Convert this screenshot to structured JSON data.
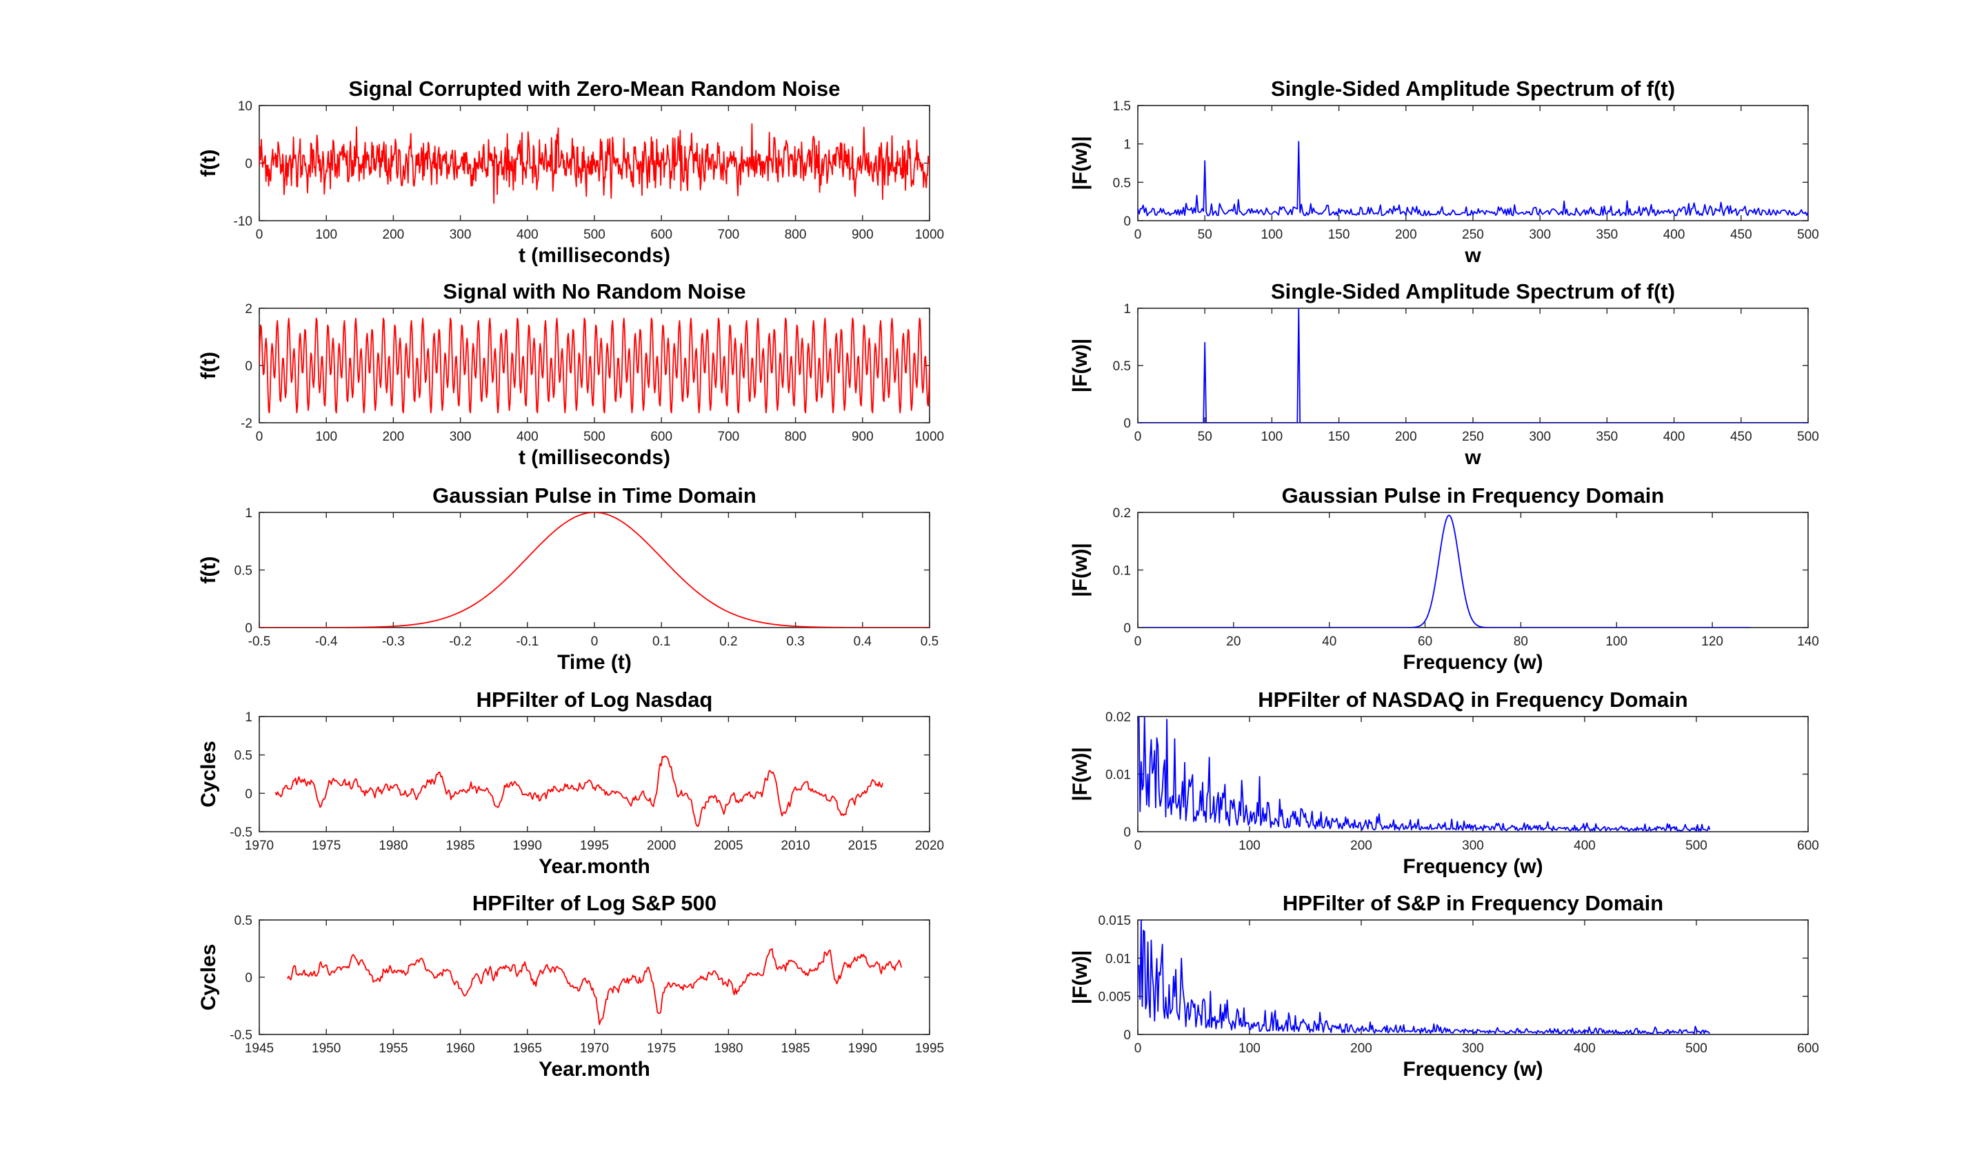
{
  "colors": {
    "red": "#ff0000",
    "blue": "#0000ff",
    "axis": "#262626"
  },
  "chart_data": [
    {
      "id": "noisy-signal",
      "type": "line",
      "title": "Signal Corrupted with Zero-Mean Random Noise",
      "xlabel": "t (milliseconds)",
      "ylabel": "f(t)",
      "xlim": [
        0,
        1000
      ],
      "ylim": [
        -10,
        10
      ],
      "xticks": [
        0,
        100,
        200,
        300,
        400,
        500,
        600,
        700,
        800,
        900,
        1000
      ],
      "yticks": [
        -10,
        0,
        10
      ],
      "series": [
        {
          "color": "red",
          "generator": "noisy_signal",
          "n": 1000
        }
      ]
    },
    {
      "id": "noisy-spectrum",
      "type": "line",
      "title": "Single-Sided Amplitude Spectrum of f(t)",
      "xlabel": "w",
      "ylabel": "|F(w)|",
      "xlim": [
        0,
        500
      ],
      "ylim": [
        0,
        1.5
      ],
      "xticks": [
        0,
        50,
        100,
        150,
        200,
        250,
        300,
        350,
        400,
        450,
        500
      ],
      "yticks": [
        0,
        0.5,
        1,
        1.5
      ],
      "peaks": [
        {
          "x": 50,
          "y": 0.78
        },
        {
          "x": 120,
          "y": 1.03
        }
      ],
      "noise_floor": 0.12,
      "series": [
        {
          "color": "blue",
          "generator": "noisy_spectrum",
          "n": 500
        }
      ]
    },
    {
      "id": "clean-signal",
      "type": "line",
      "title": "Signal with No Random Noise",
      "xlabel": "t (milliseconds)",
      "ylabel": "f(t)",
      "xlim": [
        0,
        1000
      ],
      "ylim": [
        -2,
        2
      ],
      "xticks": [
        0,
        100,
        200,
        300,
        400,
        500,
        600,
        700,
        800,
        900,
        1000
      ],
      "yticks": [
        -2,
        0,
        2
      ],
      "series": [
        {
          "color": "red",
          "generator": "clean_signal",
          "n": 1000
        }
      ]
    },
    {
      "id": "clean-spectrum",
      "type": "line",
      "title": "Single-Sided Amplitude Spectrum of f(t)",
      "xlabel": "w",
      "ylabel": "|F(w)|",
      "xlim": [
        0,
        500
      ],
      "ylim": [
        0,
        1
      ],
      "xticks": [
        0,
        50,
        100,
        150,
        200,
        250,
        300,
        350,
        400,
        450,
        500
      ],
      "yticks": [
        0,
        0.5,
        1
      ],
      "peaks": [
        {
          "x": 50,
          "y": 0.7
        },
        {
          "x": 120,
          "y": 1.0
        }
      ],
      "series": [
        {
          "color": "blue",
          "generator": "clean_spectrum",
          "n": 500
        }
      ]
    },
    {
      "id": "gauss-time",
      "type": "line",
      "title": "Gaussian Pulse in Time Domain",
      "xlabel": "Time (t)",
      "ylabel": "f(t)",
      "xlim": [
        -0.5,
        0.5
      ],
      "ylim": [
        0,
        1
      ],
      "xticks": [
        -0.5,
        -0.4,
        -0.3,
        -0.2,
        -0.1,
        0,
        0.1,
        0.2,
        0.3,
        0.4,
        0.5
      ],
      "yticks": [
        0,
        0.5,
        1
      ],
      "pulse": {
        "center": 0,
        "sigma": 0.1,
        "peak": 1
      },
      "series": [
        {
          "color": "red",
          "generator": "gauss_time",
          "n": 400
        }
      ]
    },
    {
      "id": "gauss-freq",
      "type": "line",
      "title": "Gaussian Pulse in Frequency Domain",
      "xlabel": "Frequency (w)",
      "ylabel": "|F(w)|",
      "xlim": [
        0,
        140
      ],
      "ylim": [
        0,
        0.2
      ],
      "xticks": [
        0,
        20,
        40,
        60,
        80,
        100,
        120,
        140
      ],
      "yticks": [
        0,
        0.1,
        0.2
      ],
      "pulse": {
        "center": 65,
        "sigma": 2.1,
        "peak": 0.195,
        "x_end": 128
      },
      "series": [
        {
          "color": "blue",
          "generator": "gauss_freq",
          "n": 512
        }
      ]
    },
    {
      "id": "nasdaq-cycles",
      "type": "line",
      "title": "HPFilter of Log Nasdaq",
      "xlabel": "Year.month",
      "ylabel": "Cycles",
      "xlim": [
        1970,
        2020
      ],
      "ylim": [
        -0.5,
        1
      ],
      "xticks": [
        1970,
        1975,
        1980,
        1985,
        1990,
        1995,
        2000,
        2005,
        2010,
        2015,
        2020
      ],
      "yticks": [
        -0.5,
        0,
        0.5,
        1
      ],
      "x_range": [
        1971.2,
        2016.5
      ],
      "features": [
        {
          "x": 1974.6,
          "y": -0.37
        },
        {
          "x": 1983.5,
          "y": 0.26
        },
        {
          "x": 1987.8,
          "y": -0.2
        },
        {
          "x": 2000.2,
          "y": 0.52
        },
        {
          "x": 2002.7,
          "y": -0.4
        },
        {
          "x": 2008.2,
          "y": 0.18
        },
        {
          "x": 2009.2,
          "y": -0.42
        }
      ],
      "series": [
        {
          "color": "red",
          "generator": "nasdaq",
          "n": 544
        }
      ]
    },
    {
      "id": "nasdaq-spectrum",
      "type": "line",
      "title": "HPFilter of NASDAQ in Frequency Domain",
      "xlabel": "Frequency (w)",
      "ylabel": "|F(w)|",
      "xlim": [
        0,
        600
      ],
      "ylim": [
        0,
        0.02
      ],
      "xticks": [
        0,
        100,
        200,
        300,
        400,
        500,
        600
      ],
      "yticks": [
        0,
        0.01,
        0.02
      ],
      "peaks": [
        {
          "x": 26,
          "y": 0.0195
        },
        {
          "x": 14,
          "y": 0.011
        },
        {
          "x": 42,
          "y": 0.012
        }
      ],
      "x_end": 512,
      "series": [
        {
          "color": "blue",
          "generator": "nasdaq_spectrum",
          "n": 512
        }
      ]
    },
    {
      "id": "sp-cycles",
      "type": "line",
      "title": "HPFilter of Log S&P 500",
      "xlabel": "Year.month",
      "ylabel": "Cycles",
      "xlim": [
        1945,
        1995
      ],
      "ylim": [
        -0.5,
        0.5
      ],
      "xticks": [
        1945,
        1950,
        1955,
        1960,
        1965,
        1970,
        1975,
        1980,
        1985,
        1990,
        1995
      ],
      "yticks": [
        -0.5,
        0,
        0.5
      ],
      "x_range": [
        1947.1,
        1992.9
      ],
      "features": [
        {
          "x": 1974.8,
          "y": -0.27
        },
        {
          "x": 1970.5,
          "y": -0.2
        },
        {
          "x": 1987.6,
          "y": 0.2
        },
        {
          "x": 1988.0,
          "y": -0.08
        },
        {
          "x": 1982.5,
          "y": -0.15
        }
      ],
      "series": [
        {
          "color": "red",
          "generator": "sp",
          "n": 552
        }
      ]
    },
    {
      "id": "sp-spectrum",
      "type": "line",
      "title": "HPFilter of S&P in Frequency Domain",
      "xlabel": "Frequency (w)",
      "ylabel": "|F(w)|",
      "xlim": [
        0,
        600
      ],
      "ylim": [
        0,
        0.015
      ],
      "xticks": [
        0,
        100,
        200,
        300,
        400,
        500,
        600
      ],
      "yticks": [
        0,
        0.005,
        0.01,
        0.015
      ],
      "peaks": [
        {
          "x": 22,
          "y": 0.0118
        },
        {
          "x": 34,
          "y": 0.0085
        },
        {
          "x": 80,
          "y": 0.0045
        }
      ],
      "x_end": 512,
      "series": [
        {
          "color": "blue",
          "generator": "sp_spectrum",
          "n": 512
        }
      ]
    }
  ]
}
